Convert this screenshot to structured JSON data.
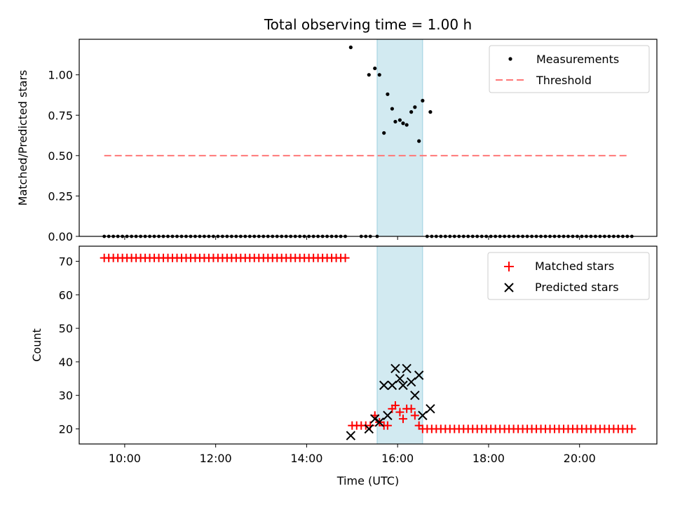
{
  "chart_data": [
    {
      "type": "scatter",
      "title": "Total observing time = 1.00 h",
      "xlabel": "",
      "ylabel": "Matched/Predicted stars",
      "xlim": [
        9.0,
        21.7
      ],
      "ylim": [
        0.0,
        1.22
      ],
      "yticks": [
        0.0,
        0.25,
        0.5,
        0.75,
        1.0
      ],
      "ytick_labels": [
        "0.00",
        "0.25",
        "0.50",
        "0.75",
        "1.00"
      ],
      "shaded_span": [
        15.55,
        16.55
      ],
      "legend": {
        "position": "upper right",
        "entries": [
          "Measurements",
          "Threshold"
        ]
      },
      "threshold": {
        "name": "Threshold",
        "y": 0.5,
        "x_range": [
          9.55,
          21.1
        ],
        "color": "#ff7777"
      },
      "measurements": {
        "name": "Measurements",
        "color": "#000000",
        "zero_series": {
          "y": 0.0,
          "segments": [
            [
              9.55,
              14.85,
              0.1
            ],
            [
              15.2,
              15.4,
              0.1
            ],
            [
              15.55,
              15.55,
              0.1
            ],
            [
              16.65,
              18.85,
              0.1
            ],
            [
              18.95,
              21.1,
              0.1
            ]
          ]
        },
        "points": [
          {
            "x": 14.97,
            "y": 1.17
          },
          {
            "x": 15.37,
            "y": 1.0
          },
          {
            "x": 15.5,
            "y": 1.04
          },
          {
            "x": 15.6,
            "y": 1.0
          },
          {
            "x": 15.7,
            "y": 0.64
          },
          {
            "x": 15.78,
            "y": 0.88
          },
          {
            "x": 15.88,
            "y": 0.79
          },
          {
            "x": 15.95,
            "y": 0.71
          },
          {
            "x": 16.05,
            "y": 0.72
          },
          {
            "x": 16.12,
            "y": 0.7
          },
          {
            "x": 16.2,
            "y": 0.69
          },
          {
            "x": 16.3,
            "y": 0.77
          },
          {
            "x": 16.38,
            "y": 0.8
          },
          {
            "x": 16.47,
            "y": 0.59
          },
          {
            "x": 16.55,
            "y": 0.84
          },
          {
            "x": 16.72,
            "y": 0.77
          }
        ]
      }
    },
    {
      "type": "scatter",
      "title": "",
      "xlabel": "Time (UTC)",
      "ylabel": "Count",
      "xlim": [
        9.0,
        21.7
      ],
      "ylim": [
        15.5,
        74.5
      ],
      "xticks": [
        10,
        12,
        14,
        16,
        18,
        20
      ],
      "xtick_labels": [
        "10:00",
        "12:00",
        "14:00",
        "16:00",
        "18:00",
        "20:00"
      ],
      "yticks": [
        20,
        30,
        40,
        50,
        60,
        70
      ],
      "ytick_labels": [
        "20",
        "30",
        "40",
        "50",
        "60",
        "70"
      ],
      "shaded_span": [
        15.55,
        16.55
      ],
      "legend": {
        "position": "upper right",
        "entries": [
          "Matched stars",
          "Predicted stars"
        ]
      },
      "matched_stars": {
        "name": "Matched stars",
        "color": "#ff0000",
        "segments": [
          {
            "x_range": [
              9.55,
              14.85
            ],
            "step": 0.1,
            "y": 71
          },
          {
            "x_range": [
              15.0,
              15.4
            ],
            "step": 0.1,
            "y": 21
          },
          {
            "x_range": [
              16.75,
              18.85
            ],
            "step": 0.1,
            "y": 20
          },
          {
            "x_range": [
              18.95,
              21.1
            ],
            "step": 0.1,
            "y": 20
          }
        ],
        "points": [
          {
            "x": 15.5,
            "y": 24
          },
          {
            "x": 15.6,
            "y": 22
          },
          {
            "x": 15.7,
            "y": 21
          },
          {
            "x": 15.78,
            "y": 21
          },
          {
            "x": 15.88,
            "y": 26
          },
          {
            "x": 15.95,
            "y": 27
          },
          {
            "x": 16.05,
            "y": 25
          },
          {
            "x": 16.12,
            "y": 23
          },
          {
            "x": 16.2,
            "y": 26
          },
          {
            "x": 16.3,
            "y": 26
          },
          {
            "x": 16.38,
            "y": 24
          },
          {
            "x": 16.47,
            "y": 21
          },
          {
            "x": 16.55,
            "y": 20
          },
          {
            "x": 16.65,
            "y": 20
          }
        ]
      },
      "predicted_stars": {
        "name": "Predicted stars",
        "color": "#000000",
        "points": [
          {
            "x": 14.97,
            "y": 18
          },
          {
            "x": 15.37,
            "y": 20
          },
          {
            "x": 15.5,
            "y": 23
          },
          {
            "x": 15.6,
            "y": 22
          },
          {
            "x": 15.7,
            "y": 33
          },
          {
            "x": 15.78,
            "y": 24
          },
          {
            "x": 15.88,
            "y": 33
          },
          {
            "x": 15.95,
            "y": 38
          },
          {
            "x": 16.05,
            "y": 35
          },
          {
            "x": 16.12,
            "y": 33
          },
          {
            "x": 16.2,
            "y": 38
          },
          {
            "x": 16.3,
            "y": 34
          },
          {
            "x": 16.38,
            "y": 30
          },
          {
            "x": 16.47,
            "y": 36
          },
          {
            "x": 16.55,
            "y": 24
          },
          {
            "x": 16.72,
            "y": 26
          }
        ]
      }
    }
  ]
}
